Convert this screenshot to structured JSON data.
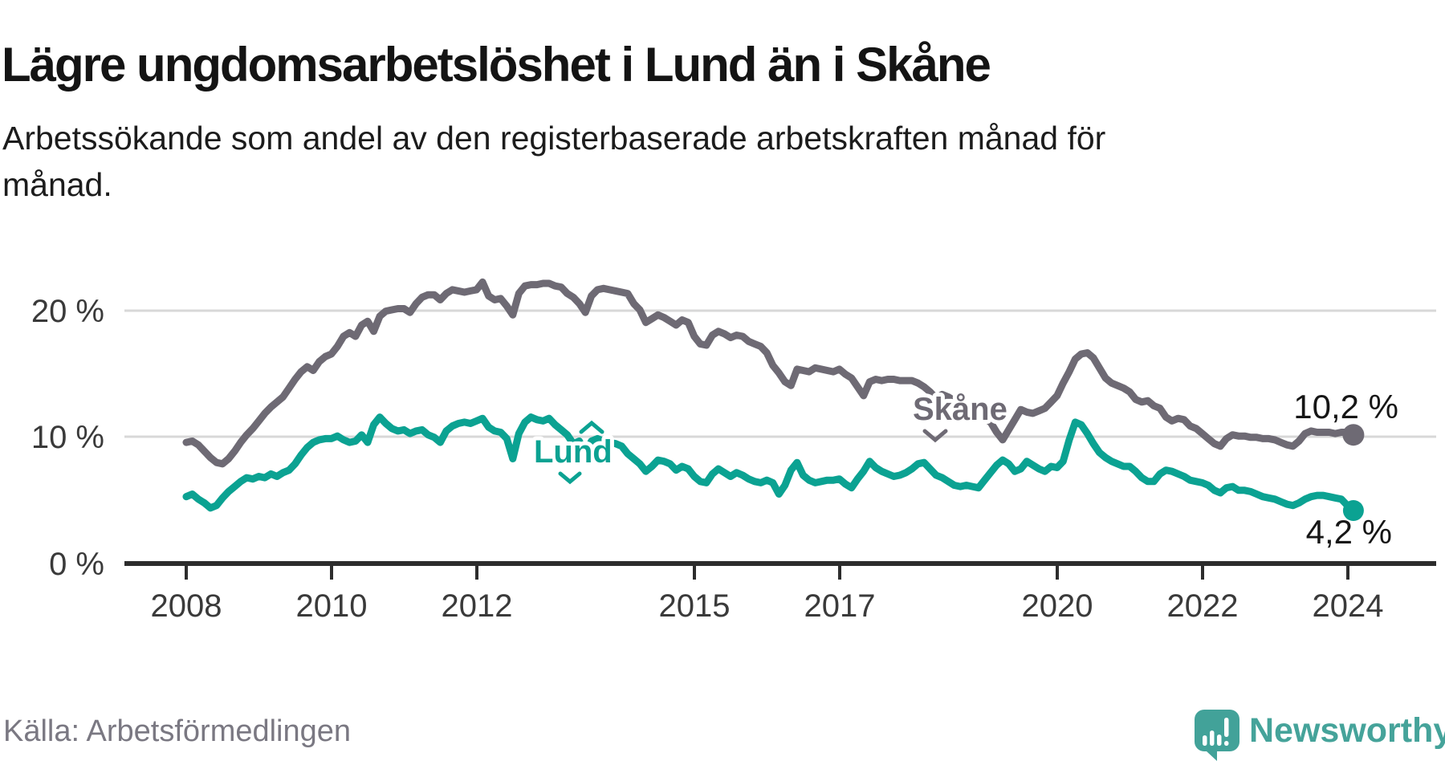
{
  "header": {
    "title": "Lägre ungdomsarbetslöshet i Lund än i Skåne",
    "subtitle_line1": "Arbetssökande som andel av den registerbaserade arbetskraften månad för",
    "subtitle_line2": "månad."
  },
  "footer": {
    "source": "Källa: Arbetsförmedlingen",
    "brand": "Newsworthy",
    "brand_icon": "newsworthy-speech-bubble-bars-icon",
    "brand_color": "#45a39a"
  },
  "colors": {
    "skane_line": "#6e6a74",
    "lund_line": "#0ba292",
    "gridline": "#d8d8d8",
    "axis": "#2d2d2d",
    "text_dark": "#141414",
    "text_gray": "#7a7882"
  },
  "chart_data": {
    "type": "line",
    "title": "Lägre ungdomsarbetslöshet i Lund än i Skåne",
    "subtitle": "Arbetssökande som andel av den registerbaserade arbetskraften månad för månad.",
    "xlabel": "",
    "ylabel": "",
    "x_unit": "month",
    "x_start_year": 2008,
    "x_end_label": "2024-02",
    "ylim": [
      0,
      23.5
    ],
    "grid": "horizontal",
    "legend_position": "inline-labels",
    "x_tick_labels": [
      "2008",
      "2010",
      "2012",
      "2015",
      "2017",
      "2020",
      "2022",
      "2024"
    ],
    "x_tick_values": [
      2008,
      2010,
      2012,
      2015,
      2017,
      2020,
      2022,
      2024
    ],
    "y_tick_labels": [
      "0 %",
      "10 %",
      "20 %"
    ],
    "y_tick_values": [
      0,
      10,
      20
    ],
    "series": [
      {
        "name": "Skåne",
        "color": "#6e6a74",
        "end_label": "10,2 %",
        "end_value": 10.2,
        "values": [
          9.6,
          9.7,
          9.4,
          8.9,
          8.4,
          8.0,
          7.9,
          8.3,
          8.9,
          9.6,
          10.2,
          10.7,
          11.3,
          11.9,
          12.4,
          12.8,
          13.2,
          13.9,
          14.6,
          15.2,
          15.6,
          15.3,
          16.0,
          16.4,
          16.6,
          17.2,
          18.0,
          18.3,
          18.0,
          18.9,
          19.2,
          18.4,
          19.6,
          20.0,
          20.1,
          20.2,
          20.2,
          19.9,
          20.6,
          21.1,
          21.3,
          21.3,
          20.9,
          21.4,
          21.7,
          21.6,
          21.5,
          21.6,
          21.7,
          22.3,
          21.2,
          20.9,
          21.0,
          20.4,
          19.7,
          21.4,
          22.0,
          22.1,
          22.1,
          22.2,
          22.2,
          22.0,
          21.9,
          21.4,
          21.1,
          20.6,
          19.9,
          21.2,
          21.7,
          21.8,
          21.7,
          21.6,
          21.5,
          21.4,
          20.6,
          20.1,
          19.1,
          19.4,
          19.7,
          19.5,
          19.2,
          18.9,
          19.3,
          19.1,
          18.0,
          17.4,
          17.3,
          18.1,
          18.4,
          18.2,
          17.9,
          18.1,
          18.0,
          17.6,
          17.4,
          17.2,
          16.7,
          15.7,
          15.1,
          14.4,
          14.1,
          15.4,
          15.3,
          15.2,
          15.5,
          15.4,
          15.3,
          15.2,
          15.4,
          15.0,
          14.7,
          14.0,
          13.3,
          14.4,
          14.6,
          14.5,
          14.6,
          14.6,
          14.5,
          14.5,
          14.5,
          14.3,
          14.0,
          13.6,
          13.1,
          13.4,
          13.2,
          12.9,
          12.6,
          12.3,
          12.0,
          11.8,
          11.5,
          11.2,
          10.4,
          9.8,
          10.6,
          11.4,
          12.2,
          12.0,
          11.9,
          12.1,
          12.3,
          12.8,
          13.3,
          14.3,
          15.2,
          16.2,
          16.6,
          16.7,
          16.3,
          15.5,
          14.7,
          14.3,
          14.1,
          13.9,
          13.6,
          13.0,
          12.8,
          12.9,
          12.5,
          12.3,
          11.6,
          11.3,
          11.5,
          11.4,
          10.9,
          10.7,
          10.3,
          9.9,
          9.5,
          9.3,
          9.9,
          10.2,
          10.1,
          10.1,
          10.0,
          10.0,
          9.9,
          9.9,
          9.8,
          9.6,
          9.4,
          9.3,
          9.7,
          10.3,
          10.5,
          10.4,
          10.4,
          10.4,
          10.3,
          10.4,
          10.4,
          10.2
        ]
      },
      {
        "name": "Lund",
        "color": "#0ba292",
        "end_label": "4,2 %",
        "end_value": 4.2,
        "values": [
          5.3,
          5.5,
          5.1,
          4.8,
          4.4,
          4.6,
          5.2,
          5.7,
          6.1,
          6.5,
          6.8,
          6.7,
          6.9,
          6.8,
          7.1,
          6.9,
          7.2,
          7.4,
          7.9,
          8.6,
          9.2,
          9.6,
          9.8,
          9.9,
          9.9,
          10.1,
          9.8,
          9.6,
          9.7,
          10.2,
          9.6,
          11.0,
          11.6,
          11.1,
          10.7,
          10.5,
          10.6,
          10.3,
          10.5,
          10.6,
          10.2,
          10.0,
          9.6,
          10.5,
          10.9,
          11.1,
          11.2,
          11.1,
          11.3,
          11.5,
          10.8,
          10.5,
          10.4,
          9.9,
          8.3,
          10.3,
          11.2,
          11.6,
          11.4,
          11.3,
          11.5,
          11.0,
          10.6,
          10.2,
          9.5,
          9.7,
          8.6,
          9.7,
          9.9,
          9.7,
          9.6,
          9.5,
          9.3,
          8.7,
          8.3,
          7.9,
          7.3,
          7.7,
          8.2,
          8.1,
          7.9,
          7.4,
          7.7,
          7.5,
          6.9,
          6.5,
          6.4,
          7.1,
          7.5,
          7.2,
          6.9,
          7.2,
          7.0,
          6.7,
          6.5,
          6.4,
          6.6,
          6.4,
          5.5,
          6.2,
          7.4,
          8.0,
          7.0,
          6.6,
          6.4,
          6.5,
          6.6,
          6.6,
          6.7,
          6.3,
          6.0,
          6.7,
          7.3,
          8.1,
          7.6,
          7.3,
          7.1,
          6.9,
          7.0,
          7.2,
          7.5,
          7.9,
          8.0,
          7.5,
          7.0,
          6.8,
          6.5,
          6.2,
          6.1,
          6.2,
          6.1,
          6.0,
          6.6,
          7.2,
          7.8,
          8.2,
          7.9,
          7.3,
          7.5,
          8.1,
          7.8,
          7.5,
          7.3,
          7.7,
          7.6,
          8.1,
          9.8,
          11.2,
          11.0,
          10.3,
          9.5,
          8.8,
          8.4,
          8.1,
          7.9,
          7.7,
          7.7,
          7.3,
          6.8,
          6.5,
          6.5,
          7.1,
          7.4,
          7.3,
          7.1,
          6.9,
          6.6,
          6.5,
          6.4,
          6.2,
          5.8,
          5.6,
          6.0,
          6.1,
          5.8,
          5.8,
          5.7,
          5.5,
          5.3,
          5.2,
          5.1,
          4.9,
          4.7,
          4.6,
          4.8,
          5.1,
          5.3,
          5.4,
          5.4,
          5.3,
          5.2,
          5.1,
          4.6,
          4.2
        ]
      }
    ]
  }
}
